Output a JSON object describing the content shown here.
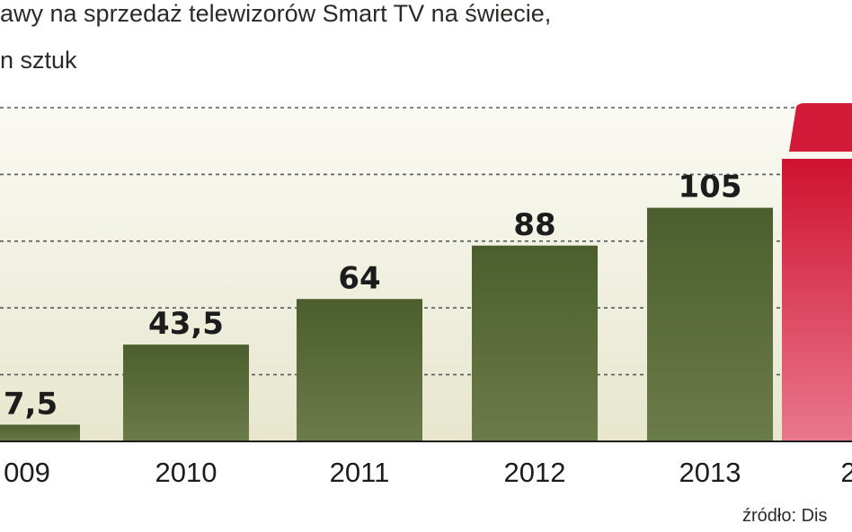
{
  "title_line1": "awy na sprzedaż telewizorów Smart TV na świecie,",
  "title_line2": "n sztuk",
  "source": "źródło: Dis",
  "colors": {
    "bar": "#556634",
    "bar_highlight": "#d31a38",
    "plot_background": "#eae9d4",
    "grid": "#5a5a5a",
    "text": "#1c1c1c"
  },
  "chart_data": {
    "type": "bar",
    "categories": [
      "009",
      "2010",
      "2011",
      "2012",
      "2013",
      "2"
    ],
    "values": [
      7.5,
      43.5,
      64,
      88,
      105,
      127
    ],
    "value_labels": [
      "7,5",
      "43,5",
      "64",
      "88",
      "105",
      ""
    ],
    "highlight_index": 5,
    "title": "awy na sprzedaż telewizorów Smart TV na świecie, n sztuk",
    "xlabel": "",
    "ylabel": "",
    "ylim": [
      0,
      150
    ],
    "grid": true,
    "grid_values": [
      30,
      60,
      90,
      120,
      150
    ]
  }
}
